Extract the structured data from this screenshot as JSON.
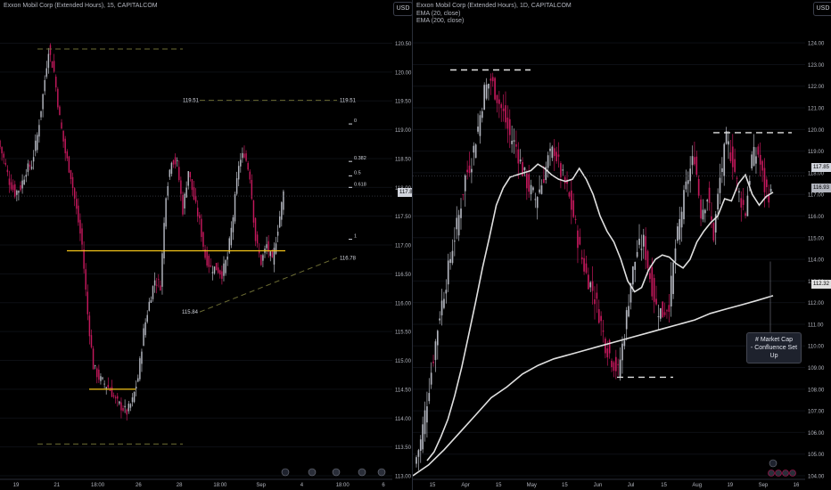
{
  "left": {
    "title": "Exxon Mobil Corp (Extended Hours), 15, CAPITALCOM",
    "currency": "USD",
    "y_ticks": [
      "120.50",
      "120.00",
      "119.50",
      "119.00",
      "118.50",
      "118.00",
      "117.50",
      "117.00",
      "116.50",
      "116.00",
      "115.50",
      "115.00",
      "114.50",
      "114.00",
      "113.50",
      "113.00"
    ],
    "x_ticks": [
      "19",
      "21",
      "18:00",
      "26",
      "28",
      "18:00",
      "Sep",
      "4",
      "18:00",
      "6"
    ],
    "price_tag": "117.85",
    "fib_levels": [
      "0",
      "0.382",
      "0.5",
      "0.618",
      "1"
    ],
    "level_labels": [
      "119.51",
      "119.51",
      "116.78",
      "115.84"
    ],
    "colors": {
      "bull": "#b2b5be",
      "bear": "#c2185b",
      "support": "#f5c518",
      "dashed": "#6b6b33"
    }
  },
  "right": {
    "title": "Exxon Mobil Corp (Extended Hours), 1D, CAPITALCOM",
    "ema_labels": [
      "EMA (20, close)",
      "EMA (200, close)"
    ],
    "currency": "USD",
    "y_ticks": [
      "124.00",
      "123.00",
      "122.00",
      "121.00",
      "120.00",
      "119.00",
      "118.00",
      "117.00",
      "116.00",
      "115.00",
      "114.00",
      "113.00",
      "112.00",
      "111.00",
      "110.00",
      "109.00",
      "108.00",
      "107.00",
      "106.00",
      "105.00",
      "104.00"
    ],
    "x_ticks": [
      "15",
      "Apr",
      "15",
      "May",
      "15",
      "Jun",
      "Jul",
      "15",
      "Aug",
      "19",
      "Sep",
      "16"
    ],
    "price_tags": [
      "117.85",
      "116.93",
      "112.32"
    ],
    "callout": [
      "# Market Cap",
      "- Confluence Set Up"
    ],
    "colors": {
      "bull": "#b2b5be",
      "bear": "#c2185b",
      "ema": "#e0e0e0"
    }
  },
  "chart_data": [
    {
      "type": "candlestick",
      "title": "Exxon Mobil Corp (Extended Hours), 15, CAPITALCOM",
      "ylim": [
        113.0,
        120.6
      ],
      "close_path": [
        118.8,
        118.5,
        118.1,
        117.9,
        118.0,
        118.3,
        118.4,
        118.9,
        119.6,
        120.4,
        120.0,
        119.2,
        118.6,
        118.2,
        117.6,
        117.0,
        115.8,
        114.9,
        114.7,
        114.6,
        114.5,
        114.3,
        114.2,
        114.1,
        114.3,
        114.7,
        115.5,
        116.0,
        116.4,
        116.3,
        117.9,
        118.5,
        118.4,
        117.6,
        118.3,
        117.8,
        117.4,
        116.8,
        116.6,
        116.6,
        116.5,
        116.8,
        117.5,
        118.4,
        118.6,
        118.2,
        117.1,
        116.7,
        117.0,
        116.7,
        117.3,
        117.9
      ],
      "support_line": 116.9,
      "fib_levels": {
        "0": 119.51,
        "0.382": 118.35,
        "0.5": 118.1,
        "0.618": 117.9,
        "1": 117.0
      }
    },
    {
      "type": "candlestick",
      "title": "Exxon Mobil Corp (Extended Hours), 1D, CAPITALCOM",
      "ylim": [
        104.0,
        124.5
      ],
      "close_path": [
        104.5,
        105.6,
        107.5,
        109.5,
        111.5,
        113.0,
        114.6,
        116.0,
        117.8,
        118.6,
        120.1,
        121.8,
        122.3,
        121.5,
        120.7,
        119.7,
        119.2,
        118.1,
        117.3,
        116.8,
        117.5,
        118.6,
        119.1,
        118.0,
        117.2,
        116.0,
        114.4,
        113.3,
        112.6,
        111.5,
        110.1,
        109.4,
        108.8,
        110.6,
        113.0,
        114.4,
        114.8,
        113.2,
        111.8,
        111.5,
        112.0,
        114.5,
        116.3,
        117.8,
        118.8,
        116.2,
        116.9,
        115.1,
        117.7,
        119.5,
        118.6,
        117.0,
        116.2,
        118.7,
        118.9,
        117.3,
        116.93
      ],
      "ema_20": [
        104.7,
        105.1,
        105.8,
        106.6,
        107.7,
        109.0,
        110.5,
        112.0,
        113.6,
        115.0,
        116.5,
        117.3,
        117.8,
        117.9,
        118.0,
        118.1,
        118.4,
        118.2,
        117.9,
        117.7,
        117.6,
        117.7,
        118.2,
        117.7,
        117.0,
        116.0,
        115.3,
        114.8,
        114.0,
        113.0,
        112.5,
        112.7,
        113.5,
        114.0,
        114.2,
        114.1,
        113.8,
        113.6,
        114.0,
        114.8,
        115.3,
        115.7,
        116.0,
        116.8,
        116.7,
        117.5,
        117.9,
        117.0,
        116.5,
        116.9,
        117.1
      ],
      "ema_200": [
        104.0,
        104.5,
        105.2,
        106.0,
        106.8,
        107.6,
        108.1,
        108.7,
        109.1,
        109.4,
        109.6,
        109.8,
        110.0,
        110.2,
        110.4,
        110.6,
        110.8,
        111.0,
        111.2,
        111.5,
        111.7,
        111.9,
        112.1,
        112.32
      ]
    }
  ]
}
